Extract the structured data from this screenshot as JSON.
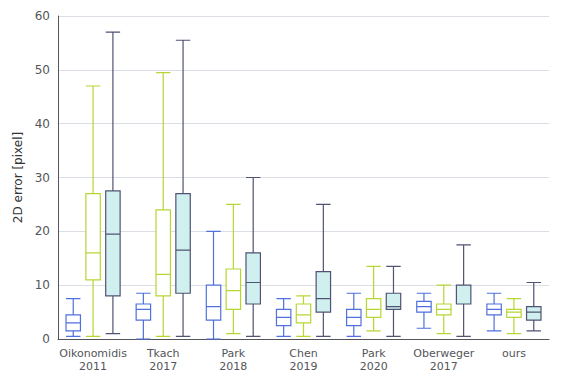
{
  "chart_data": {
    "type": "boxplot",
    "ylabel": "2D error [pixel]",
    "categories": [
      "Oikonomidis\n2011",
      "Tkach\n2017",
      "Park\n2018",
      "Chen\n2019",
      "Park\n2020",
      "Oberweger\n2017",
      "ours"
    ],
    "series": [
      {
        "color": "#ffffff",
        "values": [
          [
            0.5,
            1.5,
            3.0,
            4.5,
            7.5
          ],
          [
            0.0,
            3.5,
            5.5,
            6.5,
            8.5
          ],
          [
            0.0,
            3.5,
            6.0,
            10.0,
            20.0
          ],
          [
            0.5,
            2.5,
            4.0,
            5.5,
            7.5
          ],
          [
            0.5,
            2.5,
            4.0,
            5.5,
            8.5
          ],
          [
            2.0,
            5.0,
            6.0,
            7.0,
            8.5
          ],
          [
            1.5,
            4.5,
            5.5,
            6.5,
            8.5
          ]
        ]
      },
      {
        "color": "#ffffff",
        "values": [
          [
            0.5,
            11.0,
            16.0,
            27.0,
            47.0
          ],
          [
            0.5,
            8.0,
            12.0,
            24.0,
            49.5
          ],
          [
            1.0,
            5.5,
            9.0,
            13.0,
            25.0
          ],
          [
            0.5,
            3.0,
            4.5,
            6.5,
            8.0
          ],
          [
            1.5,
            4.0,
            5.5,
            7.5,
            13.5
          ],
          [
            1.0,
            4.5,
            5.5,
            6.5,
            10.0
          ],
          [
            1.0,
            4.0,
            5.0,
            5.5,
            7.5
          ]
        ]
      },
      {
        "color": "#d0f0f0",
        "values": [
          [
            1.0,
            8.0,
            19.5,
            27.5,
            57.0
          ],
          [
            0.5,
            8.5,
            16.5,
            27.0,
            55.5
          ],
          [
            0.5,
            6.5,
            10.5,
            16.0,
            30.0
          ],
          [
            0.5,
            5.0,
            7.5,
            12.5,
            25.0
          ],
          [
            0.5,
            5.5,
            6.0,
            8.5,
            13.5
          ],
          [
            0.5,
            6.5,
            6.5,
            10.0,
            17.5
          ],
          [
            1.5,
            3.5,
            5.0,
            6.0,
            10.5
          ]
        ]
      }
    ],
    "ylim": [
      0,
      60
    ],
    "yticks": [
      0,
      10,
      20,
      30,
      40,
      50,
      60
    ],
    "grid": true
  }
}
